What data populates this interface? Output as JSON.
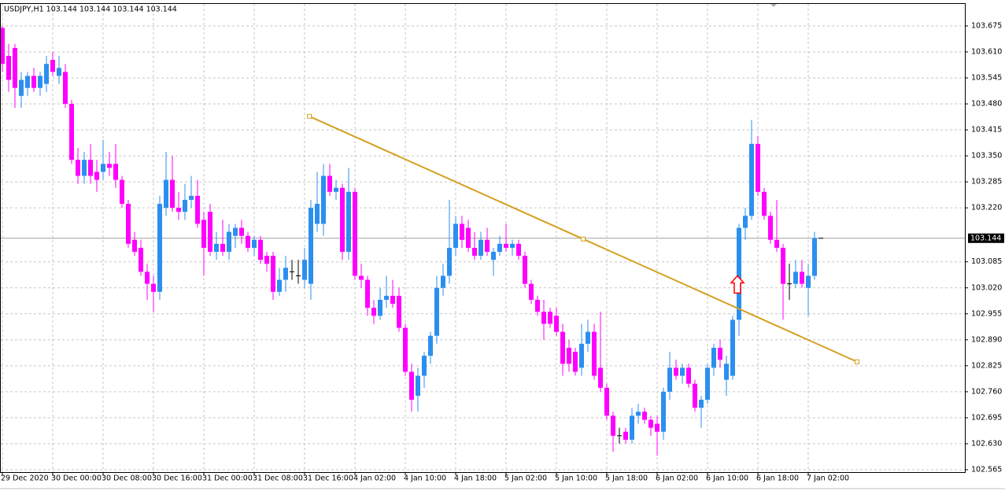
{
  "chart_data": {
    "type": "candlestick",
    "title": "USDJPY,H1  103.144 103.144 103.144 103.144",
    "categories": [
      "29 Dec 2020",
      null,
      null,
      null,
      null,
      null,
      null,
      null,
      "30 Dec 00:00",
      null,
      null,
      null,
      null,
      null,
      null,
      null,
      "30 Dec 08:00",
      null,
      null,
      null,
      null,
      null,
      null,
      null,
      "30 Dec 16:00",
      null,
      null,
      null,
      null,
      null,
      null,
      null,
      "31 Dec 00:00",
      null,
      null,
      null,
      null,
      null,
      null,
      null,
      "31 Dec 08:00",
      null,
      null,
      null,
      null,
      null,
      null,
      null,
      "31 Dec 16:00",
      null,
      null,
      null,
      null,
      null,
      null,
      null,
      "4 Jan 02:00",
      null,
      null,
      null,
      null,
      null,
      null,
      null,
      "4 Jan 10:00",
      null,
      null,
      null,
      null,
      null,
      null,
      null,
      "4 Jan 18:00",
      null,
      null,
      null,
      null,
      null,
      null,
      null,
      "5 Jan 02:00",
      null,
      null,
      null,
      null,
      null,
      null,
      null,
      "5 Jan 10:00",
      null,
      null,
      null,
      null,
      null,
      null,
      null,
      "5 Jan 18:00",
      null,
      null,
      null,
      null,
      null,
      null,
      null,
      "6 Jan 02:00",
      null,
      null,
      null,
      null,
      null,
      null,
      null,
      "6 Jan 10:00",
      null,
      null,
      null,
      null,
      null,
      null,
      null,
      "6 Jan 18:00",
      null,
      null,
      null,
      null,
      null,
      null,
      null,
      "7 Jan 02:00",
      null,
      null
    ],
    "open": [
      103.67,
      103.6,
      103.62,
      103.5,
      103.52,
      103.55,
      103.52,
      103.53,
      103.59,
      103.55,
      103.56,
      103.48,
      103.34,
      103.3,
      103.34,
      103.31,
      103.31,
      103.33,
      103.33,
      103.29,
      103.23,
      103.14,
      103.12,
      103.06,
      103.03,
      103.01,
      103.22,
      103.29,
      103.22,
      103.21,
      103.24,
      103.25,
      103.19,
      103.21,
      103.11,
      103.13,
      103.11,
      103.15,
      103.17,
      103.15,
      103.12,
      103.14,
      103.1,
      103.1,
      103.01,
      103.04,
      103.06,
      103.05,
      103.04,
      103.03,
      103.18,
      103.18,
      103.3,
      103.26,
      103.27,
      103.11,
      103.26,
      103.05,
      103.04,
      102.97,
      102.95,
      102.99,
      103.0,
      103.0,
      102.92,
      102.81,
      102.75,
      102.8,
      102.85,
      102.9,
      103.02,
      103.05,
      103.12,
      103.18,
      103.17,
      103.12,
      103.1,
      103.14,
      103.09,
      103.11,
      103.13,
      103.12,
      103.13,
      103.1,
      103.03,
      102.99,
      102.96,
      102.96,
      102.95,
      102.91,
      102.87,
      102.86,
      102.82,
      102.88,
      102.91,
      102.82,
      102.77,
      102.7,
      102.65,
      102.66,
      102.64,
      102.7,
      102.71,
      102.69,
      102.68,
      102.66,
      102.76,
      102.82,
      102.8,
      102.82,
      102.78,
      102.72,
      102.74,
      102.82,
      102.87,
      102.79,
      102.8,
      102.94,
      103.17,
      103.2,
      103.38,
      103.26,
      103.2,
      103.14,
      103.12,
      103.03,
      103.03,
      103.06,
      103.02,
      103.05,
      103.144
    ],
    "high": [
      103.675,
      103.63,
      103.63,
      103.56,
      103.56,
      103.57,
      103.56,
      103.6,
      103.61,
      103.6,
      103.58,
      103.49,
      103.37,
      103.36,
      103.38,
      103.34,
      103.39,
      103.36,
      103.38,
      103.3,
      103.24,
      103.16,
      103.14,
      103.08,
      103.05,
      103.25,
      103.36,
      103.35,
      103.26,
      103.28,
      103.3,
      103.29,
      103.21,
      103.23,
      103.16,
      103.19,
      103.18,
      103.18,
      103.19,
      103.16,
      103.15,
      103.15,
      103.11,
      103.11,
      103.07,
      103.1,
      103.09,
      103.09,
      103.12,
      103.24,
      103.31,
      103.33,
      103.33,
      103.29,
      103.28,
      103.32,
      103.27,
      103.08,
      103.05,
      102.99,
      103.02,
      103.05,
      103.04,
      103.02,
      102.93,
      102.83,
      102.82,
      102.86,
      102.91,
      103.05,
      103.08,
      103.24,
      103.2,
      103.2,
      103.19,
      103.16,
      103.16,
      103.17,
      103.12,
      103.15,
      103.18,
      103.14,
      103.14,
      103.11,
      103.04,
      103.0,
      102.99,
      102.97,
      102.97,
      102.93,
      102.89,
      102.87,
      102.93,
      102.94,
      102.93,
      102.96,
      102.78,
      102.71,
      102.67,
      102.67,
      102.72,
      102.73,
      102.72,
      102.7,
      102.7,
      102.77,
      102.86,
      102.84,
      102.83,
      102.83,
      102.79,
      102.75,
      102.83,
      102.88,
      102.89,
      102.85,
      102.95,
      103.18,
      103.22,
      103.44,
      103.4,
      103.27,
      103.21,
      103.24,
      103.13,
      103.08,
      103.09,
      103.09,
      103.08,
      103.16,
      103.144
    ],
    "low": [
      103.56,
      103.51,
      103.47,
      103.47,
      103.5,
      103.51,
      103.5,
      103.51,
      103.55,
      103.53,
      103.47,
      103.33,
      103.28,
      103.28,
      103.28,
      103.26,
      103.29,
      103.3,
      103.27,
      103.22,
      103.12,
      103.1,
      103.05,
      102.99,
      102.96,
      102.99,
      103.2,
      103.21,
      103.19,
      103.19,
      103.22,
      103.17,
      103.05,
      103.1,
      103.09,
      103.1,
      103.09,
      103.12,
      103.13,
      103.11,
      103.1,
      103.08,
      103.06,
      102.99,
      103.0,
      103.01,
      103.04,
      103.03,
      103.02,
      102.99,
      103.16,
      103.15,
      103.25,
      103.24,
      103.09,
      103.09,
      103.04,
      103.02,
      102.95,
      102.93,
      102.94,
      102.97,
      102.97,
      102.91,
      102.8,
      102.71,
      102.71,
      102.77,
      102.83,
      102.88,
      103.0,
      103.03,
      103.1,
      103.12,
      103.11,
      103.09,
      103.09,
      103.1,
      103.05,
      103.1,
      103.11,
      103.1,
      103.09,
      103.02,
      102.98,
      102.95,
      102.89,
      102.92,
      102.9,
      102.8,
      102.81,
      102.8,
      102.8,
      102.86,
      102.79,
      102.76,
      102.69,
      102.61,
      102.63,
      102.63,
      102.63,
      102.68,
      102.68,
      102.65,
      102.6,
      102.64,
      102.74,
      102.79,
      102.78,
      102.77,
      102.71,
      102.67,
      102.73,
      102.8,
      102.82,
      102.75,
      102.79,
      102.9,
      103.14,
      103.19,
      103.25,
      103.19,
      103.13,
      103.11,
      102.94,
      102.99,
      103.02,
      103.02,
      102.95,
      103.04,
      103.144
    ],
    "close": [
      103.58,
      103.54,
      103.52,
      103.54,
      103.55,
      103.52,
      103.55,
      103.58,
      103.56,
      103.57,
      103.48,
      103.34,
      103.3,
      103.34,
      103.3,
      103.29,
      103.33,
      103.32,
      103.29,
      103.23,
      103.13,
      103.11,
      103.06,
      103.03,
      103.01,
      103.23,
      103.29,
      103.22,
      103.21,
      103.24,
      103.25,
      103.18,
      103.12,
      103.11,
      103.13,
      103.11,
      103.16,
      103.17,
      103.15,
      103.12,
      103.14,
      103.09,
      103.08,
      103.01,
      103.04,
      103.07,
      103.06,
      103.05,
      103.09,
      103.22,
      103.23,
      103.3,
      103.26,
      103.27,
      103.11,
      103.26,
      103.05,
      103.04,
      102.97,
      102.95,
      102.99,
      103.0,
      102.98,
      102.92,
      102.81,
      102.74,
      102.8,
      102.85,
      102.9,
      103.02,
      103.05,
      103.12,
      103.18,
      103.14,
      103.12,
      103.1,
      103.14,
      103.11,
      103.11,
      103.13,
      103.12,
      103.13,
      103.1,
      103.03,
      102.99,
      102.96,
      102.93,
      102.93,
      102.91,
      102.83,
      102.83,
      102.81,
      102.88,
      102.91,
      102.8,
      102.77,
      102.7,
      102.65,
      102.65,
      102.64,
      102.7,
      102.71,
      102.69,
      102.67,
      102.66,
      102.76,
      102.82,
      102.8,
      102.82,
      102.78,
      102.72,
      102.74,
      102.82,
      102.87,
      102.84,
      102.83,
      102.94,
      103.17,
      103.2,
      103.38,
      103.26,
      103.2,
      103.14,
      103.12,
      103.03,
      103.03,
      103.06,
      103.03,
      103.05,
      103.144,
      103.144
    ],
    "up_color": "#2b8ff0",
    "down_color": "#ff00ff",
    "doji_color": "#000000",
    "ylim": [
      102.559,
      103.73
    ],
    "yticks": [
      103.675,
      {
        "value": 103.61,
        "label": "103.610"
      },
      103.545,
      {
        "value": 103.48,
        "label": "103.480"
      },
      103.415,
      {
        "value": 103.35,
        "label": "103.350"
      },
      103.285,
      {
        "value": 103.22,
        "label": "103.220"
      },
      103.085,
      {
        "value": 103.02,
        "label": "103.020"
      },
      102.955,
      {
        "value": 102.89,
        "label": "102.890"
      },
      102.825,
      {
        "value": 102.76,
        "label": "102.760"
      },
      102.695,
      {
        "value": 102.63,
        "label": "102.630"
      },
      102.565
    ],
    "grid": true,
    "last_price": 103.144,
    "trendline": {
      "x": [
        48.75,
        135.75
      ],
      "y": [
        103.449,
        102.835
      ],
      "color": "#d4a020"
    },
    "arrow": {
      "x": 116.75,
      "y": 103.05,
      "color": "#ff0000"
    }
  }
}
